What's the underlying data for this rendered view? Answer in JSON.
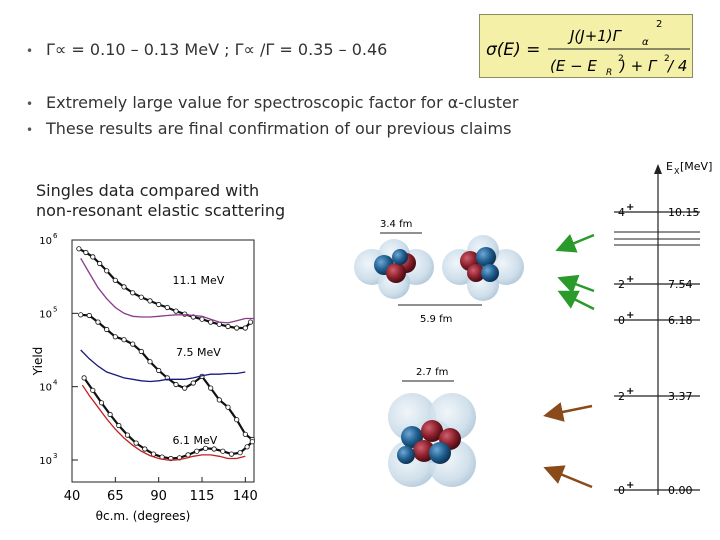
{
  "bullets": [
    {
      "text": "Γ∝ = 0.10 – 0.13 MeV ; Γ∝ /Γ = 0.35 – 0.46"
    },
    {
      "text": "Extremely large value for spectroscopic factor for α-cluster"
    },
    {
      "text": "These results are final confirmation of our previous claims"
    }
  ],
  "formula": {
    "lhs": "σ(E) =",
    "numerator": "J(J+1)Γ",
    "num_sub": "α",
    "num_sup": "2",
    "denominator_left": "(E − E",
    "den_sub": "R",
    "den_sup": "2",
    "denominator_right": ") + Γ",
    "den_sup2": "2",
    "den_tail": " / 4"
  },
  "caption": {
    "line1": "Singles data compared with",
    "line2": "non-resonant elastic scattering"
  },
  "chart_data": {
    "type": "line",
    "ylabel": "Yield",
    "xlabel": "θc.m. (degrees)",
    "xlim": [
      40,
      145
    ],
    "ylim_log10": [
      2.7,
      6
    ],
    "x_ticks": [
      40,
      65,
      90,
      115,
      140
    ],
    "y_ticks": [
      {
        "exp": 3,
        "label": "10",
        "sup": "3"
      },
      {
        "exp": 4,
        "label": "10",
        "sup": "4"
      },
      {
        "exp": 5,
        "label": "10",
        "sup": "5"
      },
      {
        "exp": 6,
        "label": "10",
        "sup": "6"
      }
    ],
    "series": [
      {
        "name": "11.1 MeV",
        "kind": "data",
        "points": [
          [
            44,
            5.88
          ],
          [
            48,
            5.83
          ],
          [
            52,
            5.77
          ],
          [
            56,
            5.68
          ],
          [
            60,
            5.58
          ],
          [
            65,
            5.45
          ],
          [
            70,
            5.36
          ],
          [
            75,
            5.28
          ],
          [
            80,
            5.22
          ],
          [
            85,
            5.17
          ],
          [
            90,
            5.12
          ],
          [
            95,
            5.08
          ],
          [
            100,
            5.03
          ],
          [
            105,
            4.99
          ],
          [
            110,
            4.95
          ],
          [
            115,
            4.92
          ],
          [
            120,
            4.88
          ],
          [
            125,
            4.85
          ],
          [
            130,
            4.82
          ],
          [
            135,
            4.8
          ],
          [
            140,
            4.8
          ],
          [
            143,
            4.88
          ]
        ],
        "color": "#111"
      },
      {
        "name": "11.1 MeV fit",
        "kind": "fit",
        "points": [
          [
            45,
            5.75
          ],
          [
            50,
            5.55
          ],
          [
            55,
            5.35
          ],
          [
            60,
            5.2
          ],
          [
            65,
            5.08
          ],
          [
            70,
            5.0
          ],
          [
            75,
            4.96
          ],
          [
            80,
            4.95
          ],
          [
            85,
            4.95
          ],
          [
            90,
            4.96
          ],
          [
            95,
            4.97
          ],
          [
            100,
            4.98
          ],
          [
            105,
            4.98
          ],
          [
            110,
            4.97
          ],
          [
            115,
            4.96
          ],
          [
            120,
            4.92
          ],
          [
            125,
            4.88
          ],
          [
            130,
            4.87
          ],
          [
            135,
            4.9
          ],
          [
            140,
            4.93
          ],
          [
            145,
            4.93
          ]
        ],
        "color": "#8a3a8a"
      },
      {
        "name": "7.5 MeV",
        "kind": "data",
        "points": [
          [
            45,
            4.98
          ],
          [
            50,
            4.97
          ],
          [
            55,
            4.88
          ],
          [
            60,
            4.78
          ],
          [
            65,
            4.68
          ],
          [
            70,
            4.64
          ],
          [
            75,
            4.58
          ],
          [
            80,
            4.48
          ],
          [
            85,
            4.34
          ],
          [
            90,
            4.22
          ],
          [
            95,
            4.12
          ],
          [
            100,
            4.03
          ],
          [
            105,
            3.98
          ],
          [
            110,
            4.05
          ],
          [
            115,
            4.14
          ],
          [
            120,
            3.98
          ],
          [
            125,
            3.82
          ],
          [
            130,
            3.72
          ],
          [
            135,
            3.55
          ],
          [
            140,
            3.35
          ],
          [
            144,
            3.28
          ]
        ],
        "color": "#111"
      },
      {
        "name": "7.5 MeV fit",
        "kind": "fit",
        "points": [
          [
            45,
            4.5
          ],
          [
            50,
            4.38
          ],
          [
            55,
            4.28
          ],
          [
            60,
            4.2
          ],
          [
            65,
            4.16
          ],
          [
            70,
            4.12
          ],
          [
            75,
            4.1
          ],
          [
            80,
            4.08
          ],
          [
            85,
            4.07
          ],
          [
            90,
            4.08
          ],
          [
            95,
            4.1
          ],
          [
            100,
            4.1
          ],
          [
            105,
            4.1
          ],
          [
            110,
            4.12
          ],
          [
            115,
            4.15
          ],
          [
            120,
            4.17
          ],
          [
            125,
            4.17
          ],
          [
            130,
            4.18
          ],
          [
            135,
            4.18
          ],
          [
            140,
            4.2
          ]
        ],
        "color": "#1a1a7a"
      },
      {
        "name": "6.1 MeV",
        "kind": "data",
        "points": [
          [
            47,
            4.12
          ],
          [
            52,
            3.95
          ],
          [
            57,
            3.78
          ],
          [
            62,
            3.62
          ],
          [
            67,
            3.47
          ],
          [
            72,
            3.34
          ],
          [
            77,
            3.23
          ],
          [
            82,
            3.15
          ],
          [
            87,
            3.08
          ],
          [
            92,
            3.04
          ],
          [
            97,
            3.02
          ],
          [
            102,
            3.03
          ],
          [
            107,
            3.07
          ],
          [
            112,
            3.12
          ],
          [
            117,
            3.16
          ],
          [
            122,
            3.15
          ],
          [
            127,
            3.12
          ],
          [
            132,
            3.08
          ],
          [
            137,
            3.1
          ],
          [
            141,
            3.18
          ],
          [
            144,
            3.25
          ]
        ],
        "color": "#111"
      },
      {
        "name": "6.1 MeV fit",
        "kind": "fit",
        "points": [
          [
            46,
            4.02
          ],
          [
            50,
            3.88
          ],
          [
            55,
            3.72
          ],
          [
            60,
            3.56
          ],
          [
            65,
            3.42
          ],
          [
            70,
            3.3
          ],
          [
            75,
            3.2
          ],
          [
            80,
            3.12
          ],
          [
            85,
            3.06
          ],
          [
            90,
            3.02
          ],
          [
            95,
            3.0
          ],
          [
            100,
            3.0
          ],
          [
            105,
            3.02
          ],
          [
            110,
            3.05
          ],
          [
            115,
            3.07
          ],
          [
            120,
            3.07
          ],
          [
            125,
            3.05
          ],
          [
            130,
            3.02
          ],
          [
            135,
            3.02
          ],
          [
            140,
            3.05
          ]
        ],
        "color": "#c02020"
      }
    ],
    "annotations": [
      {
        "text": "11.1 MeV",
        "x": 98,
        "y": 5.4
      },
      {
        "text": "7.5 MeV",
        "x": 100,
        "y": 4.42
      },
      {
        "text": "6.1 MeV",
        "x": 98,
        "y": 3.22
      }
    ]
  },
  "cluster": {
    "label_top": "3.4 fm",
    "label_mid": "5.9 fm",
    "label_bot": "2.7 fm"
  },
  "levels": {
    "header_e": "E",
    "header_sub": "X",
    "header_unit": "[MeV]",
    "items": [
      {
        "spin": "4",
        "parity": "+",
        "energy": "10.15"
      },
      {
        "spin": "2",
        "parity": "+",
        "energy": "7.54"
      },
      {
        "spin": "0",
        "parity": "+",
        "energy": "6.18"
      },
      {
        "spin": "2",
        "parity": "+",
        "energy": "3.37"
      },
      {
        "spin": "0",
        "parity": "+",
        "energy": "0.00"
      }
    ]
  },
  "colors": {
    "green_arrow": "#2a9a2a",
    "brown_arrow": "#8a4a1a",
    "blue_ball": "#1f5e8f",
    "red_ball": "#8a1f2a",
    "halo": "#c9dbe8"
  }
}
